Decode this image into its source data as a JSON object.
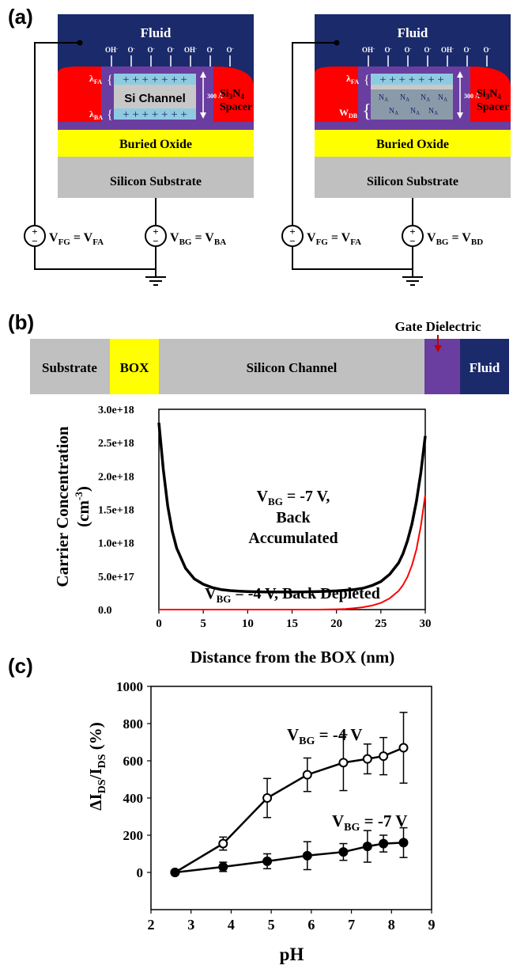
{
  "panels": {
    "a": "(a)",
    "b": "(b)",
    "c": "(c)"
  },
  "device_left": {
    "fluid": "Fluid",
    "ions": [
      "OH",
      "O",
      "O",
      "O",
      "OH",
      "O",
      "O"
    ],
    "channel": "Si Channel",
    "lambda_fa": "λ",
    "lambda_fa_sub": "FA",
    "lambda_ba": "λ",
    "lambda_ba_sub": "BA",
    "thickness": "300 Å",
    "spacer_line1": "Si",
    "spacer_sub1": "3",
    "spacer_n": "N",
    "spacer_sub2": "4",
    "spacer_line2": "Spacer",
    "buried_oxide": "Buried Oxide",
    "substrate": "Silicon Substrate",
    "vfg": "V",
    "vfg_sub": "FG",
    "vfg_eq": " = V",
    "vfg_rhs_sub": "FA",
    "vbg": "V",
    "vbg_sub": "BG",
    "vbg_eq": " = V",
    "vbg_rhs_sub": "BA"
  },
  "device_right": {
    "fluid": "Fluid",
    "ions": [
      "OH",
      "O",
      "O",
      "O",
      "OH",
      "O",
      "O"
    ],
    "lambda_fa": "λ",
    "lambda_fa_sub": "FA",
    "wdb": "W",
    "wdb_sub": "DB",
    "dopant": "N",
    "dopant_sub": "A",
    "thickness": "300 Å",
    "spacer_line1": "Si",
    "spacer_sub1": "3",
    "spacer_n": "N",
    "spacer_sub2": "4",
    "spacer_line2": "Spacer",
    "buried_oxide": "Buried Oxide",
    "substrate": "Silicon Substrate",
    "vfg": "V",
    "vfg_sub": "FG",
    "vfg_eq": " = V",
    "vfg_rhs_sub": "FA",
    "vbg": "V",
    "vbg_sub": "BG",
    "vbg_eq": " = V",
    "vbg_rhs_sub": "BD"
  },
  "layer_bar": {
    "substrate": "Substrate",
    "box": "BOX",
    "channel": "Silicon Channel",
    "fluid": "Fluid",
    "gate_dielectric": "Gate Dielectric"
  },
  "colors": {
    "fluid": "#1b2a6b",
    "channel_oxide": "#6a3ea0",
    "spacer": "#ff0000",
    "buried_oxide": "#ffff00",
    "substrate": "#c0c0c0",
    "channel_cyan": "#8fcbe0",
    "depleted": "#8b9aa8",
    "curve_accumulated": "#000000",
    "curve_depleted": "#ff0000",
    "arrow": "#c00000"
  },
  "chart_data": [
    {
      "type": "line",
      "xlabel": "Distance from the BOX (nm)",
      "ylabel_line1": "Carrier Concentration",
      "ylabel_line2": "(cm",
      "ylabel_exp": "-3",
      "ylabel_close": ")",
      "xlim": [
        0,
        30
      ],
      "ylim": [
        0,
        3e+18
      ],
      "x_ticks": [
        "0",
        "5",
        "10",
        "15",
        "20",
        "25",
        "30"
      ],
      "y_ticks": [
        "0.0",
        "5.0e+17",
        "1.0e+18",
        "1.5e+18",
        "2.0e+18",
        "2.5e+18",
        "3.0e+18"
      ],
      "series": [
        {
          "label_line1_v": "V",
          "label_line1_sub": "BG",
          "label_line1_rest": " = -7 V,",
          "label_line2": "Back",
          "label_line3": "Accumulated",
          "color": "#000000",
          "x": [
            0,
            0.5,
            1,
            1.5,
            2,
            3,
            4,
            5,
            6,
            7,
            8,
            9,
            10,
            12,
            14,
            16,
            18,
            20,
            22,
            23,
            24,
            25,
            26,
            27,
            27.5,
            28,
            28.5,
            29,
            29.5,
            30
          ],
          "y": [
            2.8e+18,
            2.1e+18,
            1.55e+18,
            1.18e+18,
            9.2e+17,
            6.2e+17,
            4.6e+17,
            3.8e+17,
            3.3e+17,
            3e+17,
            2.85e+17,
            2.75e+17,
            2.7e+17,
            2.65e+17,
            2.65e+17,
            2.65e+17,
            2.7e+17,
            2.8e+17,
            3e+17,
            3.2e+17,
            3.6e+17,
            4.2e+17,
            5.3e+17,
            7e+17,
            8.4e+17,
            1.03e+18,
            1.28e+18,
            1.62e+18,
            2.05e+18,
            2.6e+18
          ]
        },
        {
          "label_v": "V",
          "label_sub": "BG",
          "label_rest": " = -4 V, Back Depleted",
          "color": "#ff0000",
          "x": [
            0,
            2,
            4,
            6,
            8,
            10,
            12,
            14,
            16,
            18,
            20,
            21,
            22,
            23,
            24,
            25,
            26,
            27,
            27.5,
            28,
            28.5,
            29,
            29.5,
            30
          ],
          "y": [
            0,
            0,
            0,
            0,
            0,
            0,
            0,
            0,
            0,
            0,
            5000000000000000.0,
            1e+16,
            2e+16,
            3.5e+16,
            6e+16,
            1e+17,
            1.7e+17,
            2.8e+17,
            3.7e+17,
            4.9e+17,
            6.6e+17,
            9e+17,
            1.25e+18,
            1.72e+18
          ]
        }
      ]
    },
    {
      "type": "line",
      "xlabel": "pH",
      "ylabel_delta": "ΔI",
      "ylabel_sub1": "DS",
      "ylabel_slash": "/I",
      "ylabel_sub2": "DS",
      "ylabel_unit": " (%)",
      "xlim": [
        2,
        9
      ],
      "ylim": [
        -200,
        1000
      ],
      "x_ticks": [
        "2",
        "3",
        "4",
        "5",
        "6",
        "7",
        "8",
        "9"
      ],
      "y_ticks": [
        "0",
        "200",
        "400",
        "600",
        "800",
        "1000"
      ],
      "series": [
        {
          "label_v": "V",
          "label_sub": "BG",
          "label_rest": " = -4 V",
          "marker": "open-circle",
          "x": [
            2.6,
            3.8,
            4.9,
            5.9,
            6.8,
            7.4,
            7.8,
            8.3
          ],
          "y": [
            0,
            155,
            400,
            525,
            590,
            610,
            625,
            670
          ],
          "err": [
            0,
            35,
            105,
            90,
            150,
            80,
            100,
            190
          ]
        },
        {
          "label_v": "V",
          "label_sub": "BG",
          "label_rest": " = -7 V",
          "marker": "filled-circle",
          "x": [
            2.6,
            3.8,
            4.9,
            5.9,
            6.8,
            7.4,
            7.8,
            8.3
          ],
          "y": [
            0,
            30,
            60,
            90,
            110,
            140,
            155,
            160
          ],
          "err": [
            0,
            25,
            40,
            75,
            45,
            85,
            45,
            80
          ]
        }
      ]
    }
  ]
}
